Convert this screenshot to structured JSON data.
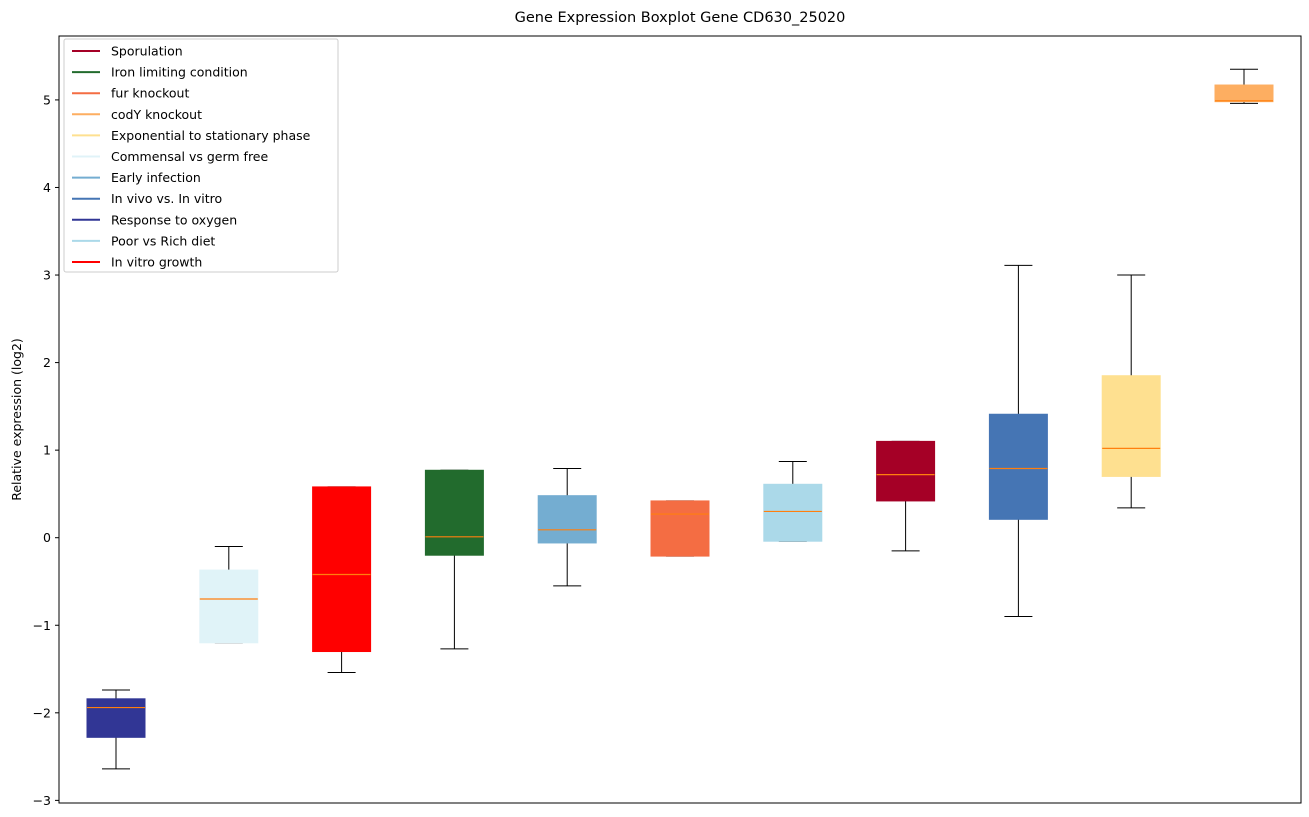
{
  "chart_data": {
    "type": "boxplot",
    "title": "Gene Expression Boxplot Gene CD630_25020",
    "xlabel": "",
    "ylabel": "Relative expression (log2)",
    "ylim": [
      -3.03,
      5.73
    ],
    "yticks": [
      -3,
      -2,
      -1,
      0,
      1,
      2,
      3,
      4,
      5
    ],
    "ytick_labels": [
      "−3",
      "−2",
      "−1",
      "0",
      "1",
      "2",
      "3",
      "4",
      "5"
    ],
    "grid": false,
    "legend_position": "top-left",
    "median_color": "#ff7f0e",
    "legend": [
      {
        "label": "Sporulation",
        "color": "#a50026"
      },
      {
        "label": "Iron limiting condition",
        "color": "#226b2d"
      },
      {
        "label": "fur knockout",
        "color": "#f46d43"
      },
      {
        "label": "codY knockout",
        "color": "#fdae61"
      },
      {
        "label": "Exponential to stationary phase",
        "color": "#fee090"
      },
      {
        "label": "Commensal vs germ free",
        "color": "#e0f3f8"
      },
      {
        "label": "Early infection",
        "color": "#74add1"
      },
      {
        "label": "In vivo vs. In vitro",
        "color": "#4575b4"
      },
      {
        "label": "Response to oxygen",
        "color": "#313695"
      },
      {
        "label": "Poor vs Rich diet",
        "color": "#abd9e9"
      },
      {
        "label": "In vitro growth",
        "color": "#ff0000"
      }
    ],
    "boxes": [
      {
        "group": "Response to oxygen",
        "color": "#313695",
        "whisker_low": -2.64,
        "q1": -2.28,
        "median": -1.94,
        "q3": -1.84,
        "whisker_high": -1.74
      },
      {
        "group": "Commensal vs germ free",
        "color": "#e0f3f8",
        "whisker_low": -1.2,
        "q1": -1.2,
        "median": -0.7,
        "q3": -0.37,
        "whisker_high": -0.1
      },
      {
        "group": "In vitro growth",
        "color": "#ff0000",
        "whisker_low": -1.54,
        "q1": -1.3,
        "median": -0.42,
        "q3": 0.58,
        "whisker_high": 0.58
      },
      {
        "group": "Iron limiting condition",
        "color": "#226b2d",
        "whisker_low": -1.27,
        "q1": -0.2,
        "median": 0.01,
        "q3": 0.77,
        "whisker_high": 0.77
      },
      {
        "group": "Early infection",
        "color": "#74add1",
        "whisker_low": -0.55,
        "q1": -0.06,
        "median": 0.09,
        "q3": 0.48,
        "whisker_high": 0.79
      },
      {
        "group": "fur knockout",
        "color": "#f46d43",
        "whisker_low": -0.21,
        "q1": -0.21,
        "median": 0.27,
        "q3": 0.42,
        "whisker_high": 0.42
      },
      {
        "group": "Poor vs Rich diet",
        "color": "#abd9e9",
        "whisker_low": -0.04,
        "q1": -0.04,
        "median": 0.3,
        "q3": 0.61,
        "whisker_high": 0.87
      },
      {
        "group": "Sporulation",
        "color": "#a50026",
        "whisker_low": -0.15,
        "q1": 0.42,
        "median": 0.72,
        "q3": 1.1,
        "whisker_high": 1.1
      },
      {
        "group": "In vivo vs. In vitro",
        "color": "#4575b4",
        "whisker_low": -0.9,
        "q1": 0.21,
        "median": 0.79,
        "q3": 1.41,
        "whisker_high": 3.11
      },
      {
        "group": "Exponential to stationary phase",
        "color": "#fee090",
        "whisker_low": 0.34,
        "q1": 0.7,
        "median": 1.02,
        "q3": 1.85,
        "whisker_high": 3.0
      },
      {
        "group": "codY knockout",
        "color": "#fdae61",
        "whisker_low": 4.96,
        "q1": 4.98,
        "median": 4.99,
        "q3": 5.17,
        "whisker_high": 5.35
      }
    ]
  }
}
